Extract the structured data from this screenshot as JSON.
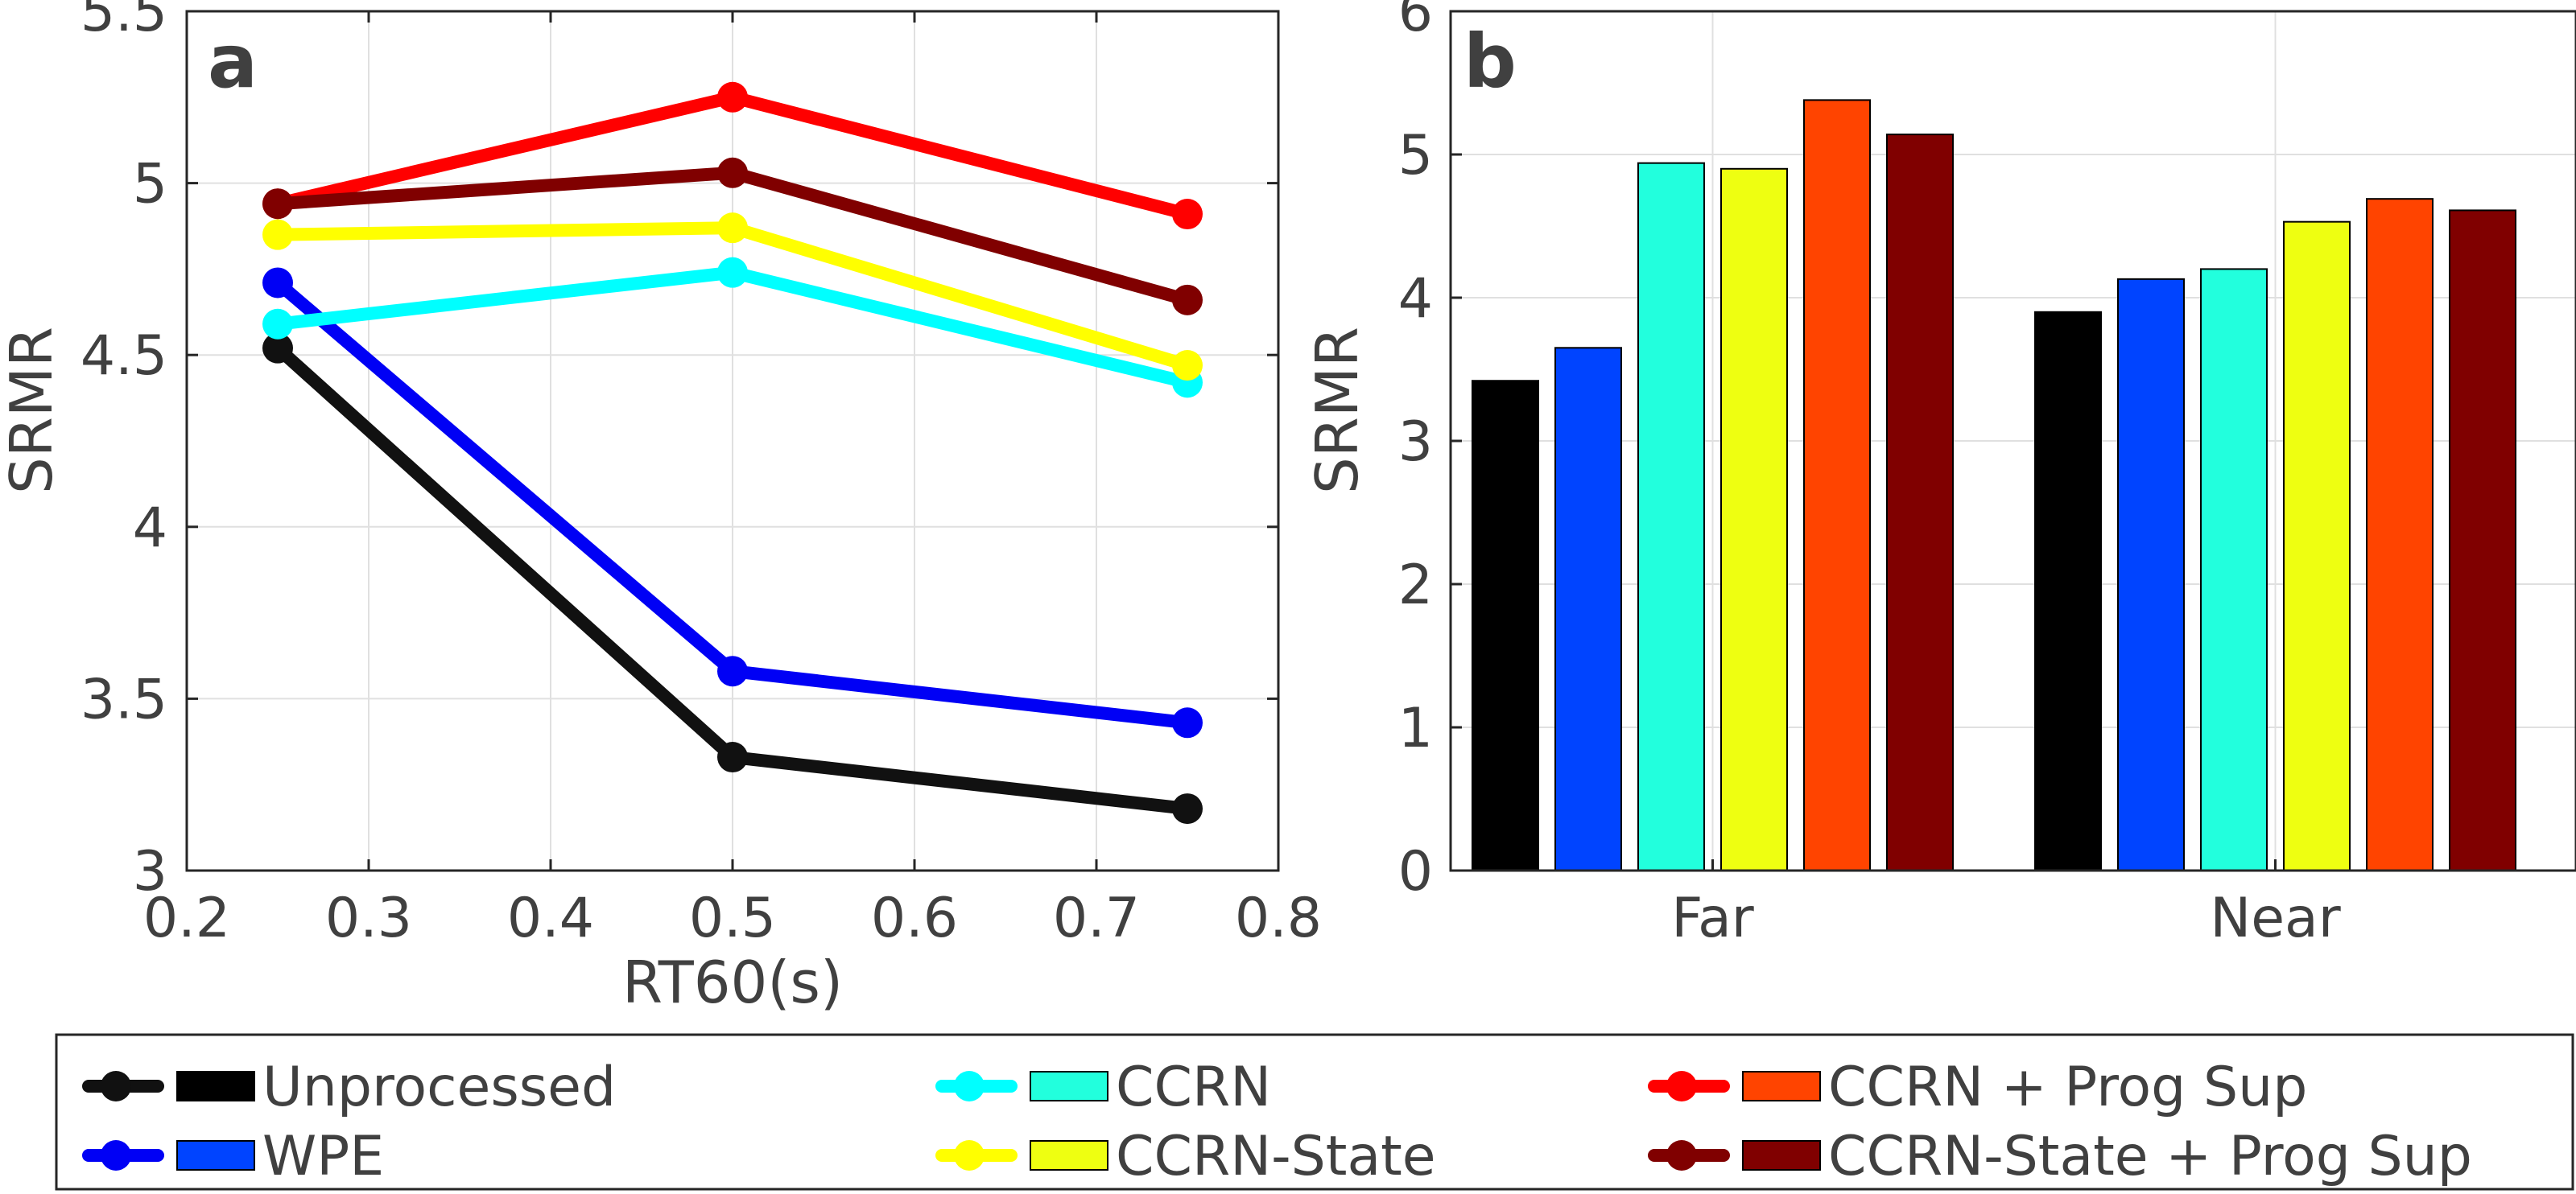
{
  "chart_data": [
    {
      "type": "line",
      "panel_label": "a",
      "xlabel": "RT60(s)",
      "ylabel": "SRMR",
      "xlim": [
        0.2,
        0.8
      ],
      "ylim": [
        3,
        5.5
      ],
      "xticks": [
        "0.2",
        "0.3",
        "0.4",
        "0.5",
        "0.6",
        "0.7",
        "0.8"
      ],
      "yticks": [
        "3",
        "3.5",
        "4",
        "4.5",
        "5",
        "5.5"
      ],
      "grid": true,
      "x": [
        0.25,
        0.5,
        0.75
      ],
      "series": [
        {
          "name": "Unprocessed",
          "color": "#111111",
          "values": [
            4.52,
            3.33,
            3.18
          ]
        },
        {
          "name": "WPE",
          "color": "#0000f5",
          "values": [
            4.71,
            3.58,
            3.43
          ]
        },
        {
          "name": "CCRN",
          "color": "#00ffff",
          "values": [
            4.59,
            4.74,
            4.42
          ]
        },
        {
          "name": "CCRN-State",
          "color": "#ffff00",
          "values": [
            4.85,
            4.87,
            4.47
          ]
        },
        {
          "name": "CCRN + Prog Sup",
          "color": "#ff0000",
          "values": [
            4.94,
            5.25,
            4.91
          ]
        },
        {
          "name": "CCRN-State + Prog Sup",
          "color": "#800000",
          "values": [
            4.94,
            5.03,
            4.66
          ]
        }
      ]
    },
    {
      "type": "bar",
      "panel_label": "b",
      "xlabel": "",
      "ylabel": "SRMR",
      "ylim": [
        0,
        6
      ],
      "yticks": [
        "0",
        "1",
        "2",
        "3",
        "4",
        "5",
        "6"
      ],
      "grid": true,
      "categories": [
        "Far",
        "Near"
      ],
      "series": [
        {
          "name": "Unprocessed",
          "color": "#000000",
          "values": [
            3.42,
            3.9
          ]
        },
        {
          "name": "WPE",
          "color": "#0044ff",
          "values": [
            3.65,
            4.13
          ]
        },
        {
          "name": "CCRN",
          "color": "#22ffdd",
          "values": [
            4.94,
            4.2
          ]
        },
        {
          "name": "CCRN-State",
          "color": "#eeff11",
          "values": [
            4.9,
            4.53
          ]
        },
        {
          "name": "CCRN + Prog Sup",
          "color": "#ff4400",
          "values": [
            5.38,
            4.69
          ]
        },
        {
          "name": "CCRN-State + Prog Sup",
          "color": "#800000",
          "values": [
            5.14,
            4.61
          ]
        }
      ]
    }
  ],
  "legend": {
    "items": [
      {
        "label": "Unprocessed",
        "line_color": "#111111",
        "bar_color": "#000000"
      },
      {
        "label": "WPE",
        "line_color": "#0000f5",
        "bar_color": "#0044ff"
      },
      {
        "label": "CCRN",
        "line_color": "#00ffff",
        "bar_color": "#22ffdd"
      },
      {
        "label": "CCRN-State",
        "line_color": "#ffff00",
        "bar_color": "#eeff11"
      },
      {
        "label": "CCRN + Prog Sup",
        "line_color": "#ff0000",
        "bar_color": "#ff4400"
      },
      {
        "label": "CCRN-State + Prog Sup",
        "line_color": "#800000",
        "bar_color": "#800000"
      }
    ]
  }
}
